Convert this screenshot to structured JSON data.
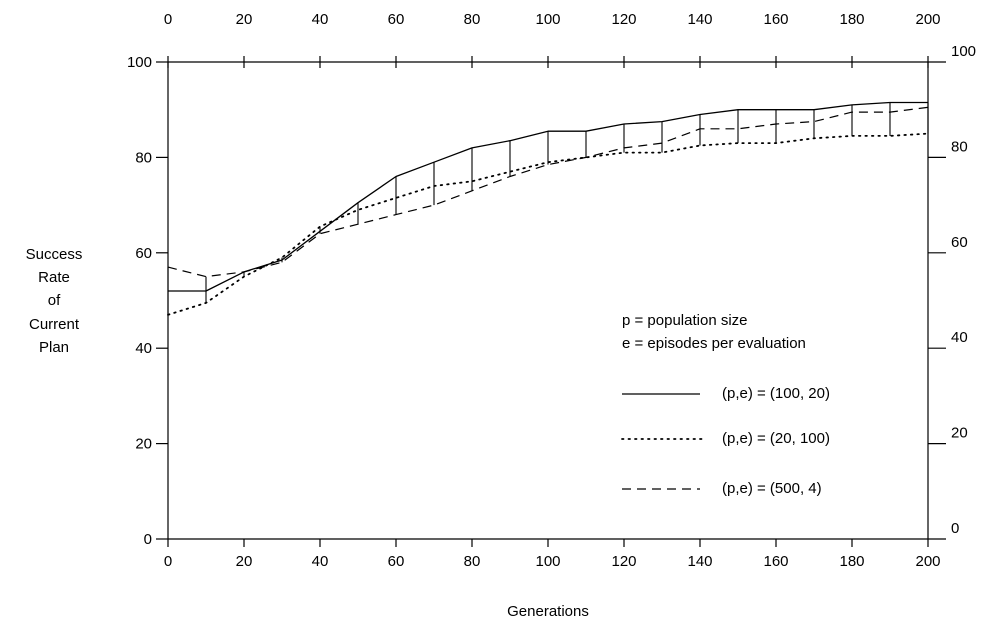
{
  "chart_data": {
    "type": "line",
    "xlabel": "Generations",
    "ylabel_lines": [
      "Success",
      "Rate",
      "of",
      "Current",
      "Plan"
    ],
    "xlim": [
      0,
      200
    ],
    "ylim": [
      0,
      100
    ],
    "x_ticks": [
      0,
      20,
      40,
      60,
      80,
      100,
      120,
      140,
      160,
      180,
      200
    ],
    "y_ticks_left": [
      0,
      20,
      40,
      60,
      80,
      100
    ],
    "y_ticks_right": [
      0,
      20,
      40,
      60,
      80,
      100
    ],
    "grid": false,
    "legend_position": "right-middle",
    "legend_notes": [
      "p = population size",
      "e = episodes per evaluation"
    ],
    "x": [
      0,
      10,
      20,
      30,
      40,
      50,
      60,
      70,
      80,
      90,
      100,
      110,
      120,
      130,
      140,
      150,
      160,
      170,
      180,
      190,
      200
    ],
    "series": [
      {
        "name": "(p,e) = (100, 20)",
        "style": "solid",
        "values": [
          52,
          52,
          56,
          58.5,
          64.5,
          70.5,
          76,
          79,
          82,
          83.5,
          85.5,
          85.5,
          87,
          87.5,
          89,
          90,
          90,
          90,
          91,
          91.5,
          91.5
        ]
      },
      {
        "name": "(p,e) = (20, 100)",
        "style": "dotted",
        "values": [
          47,
          49.5,
          55,
          59,
          65.5,
          69,
          71.5,
          74,
          75,
          77,
          79,
          80,
          81,
          81,
          82.5,
          83,
          83,
          84,
          84.5,
          84.5,
          85
        ]
      },
      {
        "name": "(p,e) = (500, 4)",
        "style": "dashed",
        "values": [
          57,
          55,
          56,
          58,
          64,
          66,
          68,
          70,
          73,
          76,
          78.5,
          80,
          82,
          83,
          86,
          86,
          87,
          87.5,
          89.5,
          89.5,
          90.5
        ]
      }
    ],
    "range_bars": true
  }
}
